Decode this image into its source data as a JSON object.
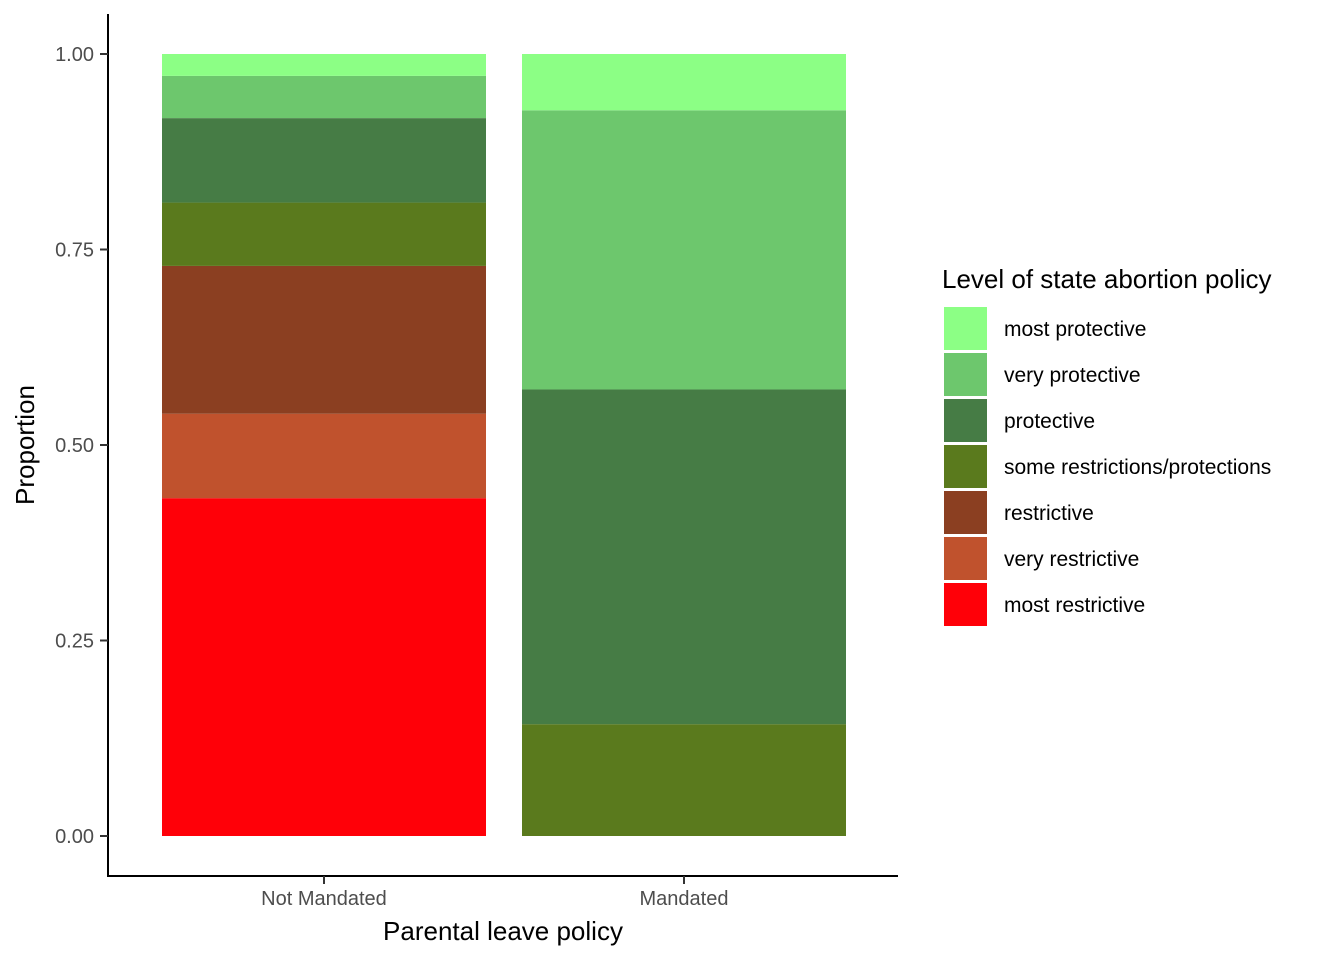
{
  "chart_data": {
    "type": "bar",
    "stacked": true,
    "categories": [
      "Not Mandated",
      "Mandated"
    ],
    "xlabel": "Parental leave policy",
    "ylabel": "Proportion",
    "ylim": [
      0,
      1
    ],
    "yticks": [
      "0.00",
      "0.25",
      "0.50",
      "0.75",
      "1.00"
    ],
    "ytick_values": [
      0,
      0.25,
      0.5,
      0.75,
      1.0
    ],
    "legend": {
      "title": "Level of state abortion policy",
      "position": "right"
    },
    "series": [
      {
        "name": "most restrictive",
        "color": "#ff0008",
        "values": [
          0.432,
          0.0
        ]
      },
      {
        "name": "very restrictive",
        "color": "#c0522d",
        "values": [
          0.108,
          0.0
        ]
      },
      {
        "name": "restrictive",
        "color": "#8b3f21",
        "values": [
          0.189,
          0.0
        ]
      },
      {
        "name": "some restrictions/protections",
        "color": "#5a7a1d",
        "values": [
          0.081,
          0.143
        ]
      },
      {
        "name": "protective",
        "color": "#467c45",
        "values": [
          0.108,
          0.428
        ]
      },
      {
        "name": "very protective",
        "color": "#6dc76d",
        "values": [
          0.054,
          0.357
        ]
      },
      {
        "name": "most protective",
        "color": "#8cff85",
        "values": [
          0.028,
          0.072
        ]
      }
    ]
  }
}
